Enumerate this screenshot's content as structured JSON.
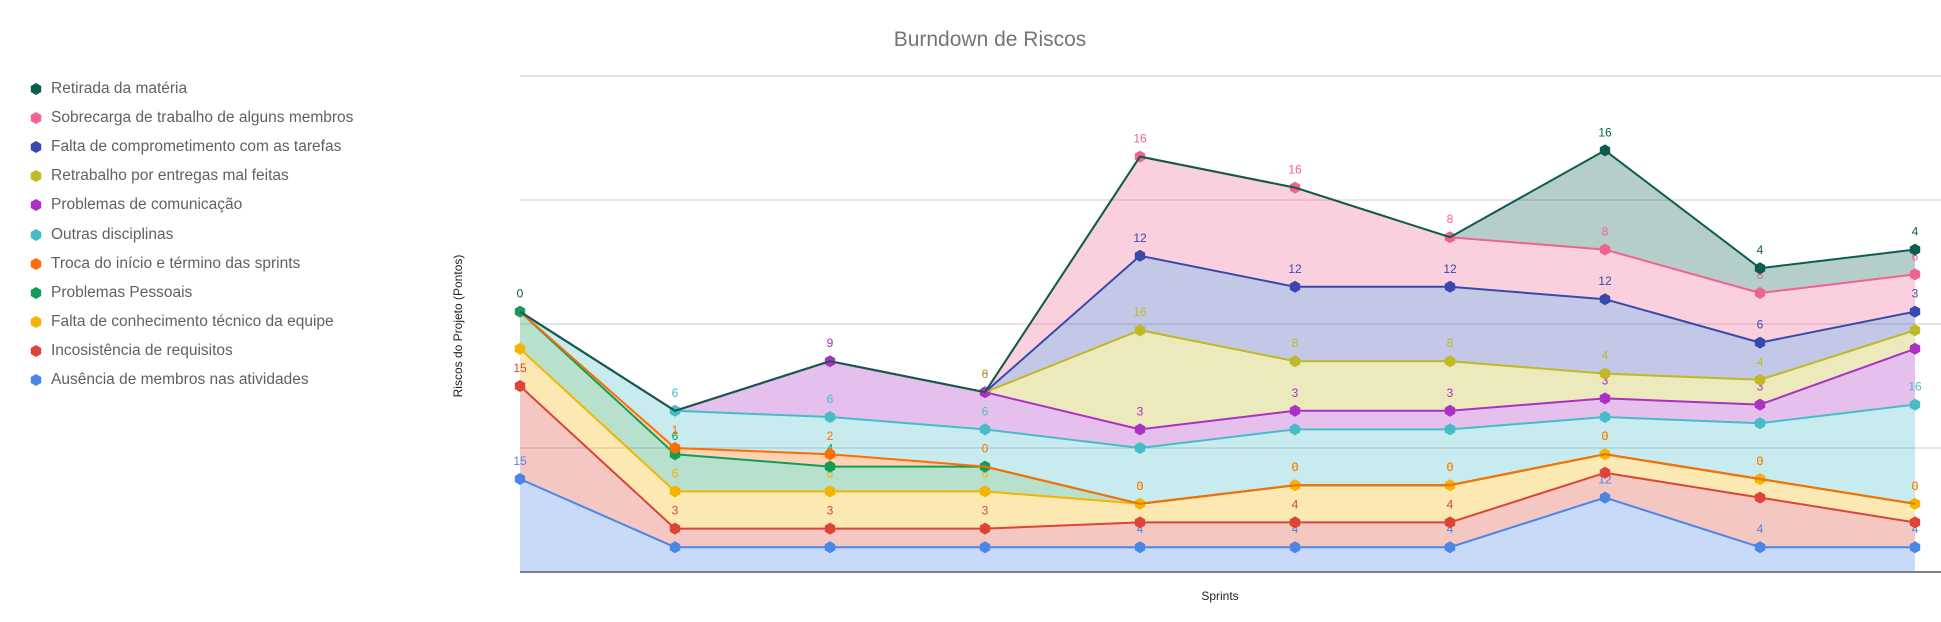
{
  "chart_data": {
    "type": "area",
    "stacked": true,
    "title": "Burndown de Riscos",
    "xlabel": "Sprints",
    "ylabel": "Riscos do Projeto (Pontos)",
    "ylim": [
      0,
      80
    ],
    "grid": true,
    "legend_position": "left",
    "x": [
      "1",
      "2",
      "3",
      "4",
      "5",
      "6",
      "7",
      "8",
      "9",
      "10"
    ],
    "series": [
      {
        "name": "Ausência de membros nas atividades",
        "color": "#4a86e8",
        "values": [
          15,
          4,
          4,
          4,
          4,
          4,
          4,
          12,
          4,
          4
        ],
        "labels": [
          "15",
          "4",
          "4",
          "4",
          "4",
          "4",
          "4",
          "12",
          "4",
          "4"
        ]
      },
      {
        "name": "Incosistência de requisitos",
        "color": "#db4437",
        "values": [
          15,
          3,
          3,
          3,
          4,
          4,
          4,
          4,
          8,
          4
        ],
        "labels": [
          "15",
          "3",
          "3",
          "3",
          "4",
          "4",
          "4",
          "4",
          "8",
          "4"
        ]
      },
      {
        "name": "Falta de conhecimento técnico da equipe",
        "color": "#f4b400",
        "values": [
          6,
          6,
          6,
          6,
          3,
          6,
          6,
          3,
          3,
          3
        ],
        "labels": [
          "",
          "6",
          "6",
          "6",
          "3",
          "6",
          "6",
          "3",
          "3",
          "3"
        ]
      },
      {
        "name": "Problemas Pessoais",
        "color": "#0f9d58",
        "values": [
          6,
          6,
          4,
          4,
          0,
          0,
          0,
          0,
          0,
          0
        ],
        "labels": [
          "",
          "6",
          "4",
          "",
          "",
          "",
          "",
          "",
          "",
          ""
        ]
      },
      {
        "name": "Troca do início e término das sprints",
        "color": "#ff6d00",
        "values": [
          0,
          1,
          2,
          0,
          0,
          0,
          0,
          0,
          0,
          0
        ],
        "labels": [
          "",
          "1",
          "2",
          "0",
          "0",
          "0",
          "0",
          "0",
          "0",
          "0"
        ]
      },
      {
        "name": "Outras disciplinas",
        "color": "#46bdc6",
        "values": [
          0,
          6,
          6,
          6,
          9,
          9,
          9,
          6,
          9,
          16
        ],
        "labels": [
          "",
          "6",
          "6",
          "6",
          "9",
          "9",
          "9",
          "6",
          "9",
          "16"
        ]
      },
      {
        "name": "Problemas de comunicação",
        "color": "#ab30c4",
        "values": [
          0,
          0,
          9,
          6,
          3,
          3,
          3,
          3,
          3,
          9
        ],
        "labels": [
          "",
          "",
          "9",
          "6",
          "3",
          "3",
          "3",
          "3",
          "3",
          "9"
        ]
      },
      {
        "name": "Retrabalho por entregas mal feitas",
        "color": "#c1b826",
        "values": [
          0,
          0,
          0,
          0,
          16,
          8,
          8,
          4,
          4,
          3
        ],
        "labels": [
          "",
          "",
          "",
          "0",
          "16",
          "8",
          "8",
          "4",
          "4",
          "3"
        ]
      },
      {
        "name": "Falta de comprometimento com as tarefas",
        "color": "#3949ab",
        "values": [
          0,
          0,
          0,
          0,
          12,
          12,
          12,
          12,
          6,
          3
        ],
        "labels": [
          "",
          "",
          "",
          "",
          "12",
          "12",
          "12",
          "12",
          "6",
          "3"
        ]
      },
      {
        "name": "Sobrecarga de trabalho de alguns membros",
        "color": "#f06292",
        "values": [
          0,
          0,
          0,
          0,
          16,
          16,
          8,
          8,
          8,
          6
        ],
        "labels": [
          "",
          "",
          "",
          "",
          "16",
          "16",
          "8",
          "8",
          "8",
          "6"
        ]
      },
      {
        "name": "Retirada da matéria",
        "color": "#0b5e4f",
        "values": [
          0,
          0,
          0,
          0,
          0,
          0,
          0,
          16,
          4,
          4
        ],
        "labels": [
          "0",
          "",
          "",
          "",
          "",
          "",
          "",
          "16",
          "4",
          "4"
        ]
      }
    ]
  }
}
